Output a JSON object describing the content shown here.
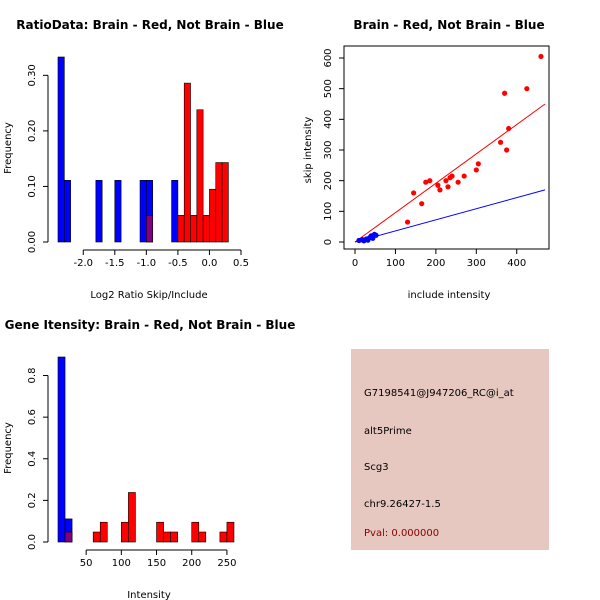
{
  "chart_data": [
    {
      "type": "bar",
      "title": "RatioData: Brain - Red, Not Brain - Blue",
      "xlabel": "Log2 Ratio Skip/Include",
      "ylabel": "Frequency",
      "xlim": [
        -2.4,
        0.5
      ],
      "ylim": [
        0,
        0.333
      ],
      "xticks": [
        -2.0,
        -1.5,
        -1.0,
        -0.5,
        0.0,
        0.5
      ],
      "xtick_labels": [
        "-2.0",
        "-1.5",
        "-1.0",
        "-0.5",
        "0.0",
        "0.5"
      ],
      "yticks": [
        0.0,
        0.1,
        0.2,
        0.3
      ],
      "ytick_labels": [
        "0.00",
        "0.10",
        "0.20",
        "0.30"
      ],
      "bin_width": 0.1,
      "series": [
        {
          "name": "Not Brain",
          "color": "#0000ff",
          "bin_starts": [
            -2.4,
            -2.3,
            -1.8,
            -1.5,
            -1.1,
            -1.0,
            -0.6
          ],
          "values": [
            0.333,
            0.111,
            0.111,
            0.111,
            0.111,
            0.111,
            0.111
          ]
        },
        {
          "name": "Brain",
          "color": "#ff0000",
          "bin_starts": [
            -1.0,
            -0.5,
            -0.4,
            -0.3,
            -0.2,
            -0.1,
            0.0,
            0.1,
            0.2
          ],
          "values": [
            0.048,
            0.048,
            0.286,
            0.048,
            0.238,
            0.048,
            0.095,
            0.143,
            0.143
          ]
        }
      ],
      "overlap_color": "#800080"
    },
    {
      "type": "scatter",
      "title": "Brain - Red, Not Brain - Blue",
      "xlabel": "include intensity",
      "ylabel": "skip intensity",
      "xlim": [
        0,
        470
      ],
      "ylim": [
        0,
        620
      ],
      "xticks": [
        0,
        100,
        200,
        300,
        400
      ],
      "yticks": [
        0,
        100,
        200,
        300,
        400,
        500,
        600
      ],
      "series": [
        {
          "name": "Brain",
          "color": "#ff0000",
          "x": [
            10,
            20,
            130,
            145,
            165,
            175,
            185,
            205,
            210,
            225,
            230,
            235,
            240,
            255,
            270,
            300,
            305,
            360,
            370,
            375,
            380,
            425,
            460
          ],
          "y": [
            5,
            5,
            65,
            160,
            125,
            195,
            200,
            185,
            170,
            200,
            180,
            210,
            215,
            195,
            215,
            235,
            255,
            325,
            485,
            300,
            370,
            500,
            605
          ]
        },
        {
          "name": "Not Brain",
          "color": "#0000ff",
          "x": [
            10,
            18,
            22,
            28,
            32,
            36,
            40,
            44,
            48,
            52
          ],
          "y": [
            5,
            8,
            4,
            10,
            6,
            14,
            20,
            12,
            25,
            22
          ]
        }
      ],
      "fit_lines": [
        {
          "name": "Brain fit",
          "color": "#ff0000",
          "x": [
            0,
            470
          ],
          "y": [
            0,
            450
          ]
        },
        {
          "name": "Not Brain fit",
          "color": "#0000ff",
          "x": [
            0,
            470
          ],
          "y": [
            0,
            170
          ]
        }
      ]
    },
    {
      "type": "bar",
      "title": "Gene Itensity: Brain - Red, Not Brain - Blue",
      "xlabel": "Intensity",
      "ylabel": "Frequency",
      "xlim": [
        10,
        270
      ],
      "ylim": [
        0,
        0.889
      ],
      "xticks": [
        50,
        100,
        150,
        200,
        250
      ],
      "yticks": [
        0.0,
        0.2,
        0.4,
        0.6,
        0.8
      ],
      "ytick_labels": [
        "0.0",
        "0.2",
        "0.4",
        "0.6",
        "0.8"
      ],
      "bin_width": 10,
      "series": [
        {
          "name": "Not Brain",
          "color": "#0000ff",
          "bin_starts": [
            10,
            20
          ],
          "values": [
            0.889,
            0.111
          ]
        },
        {
          "name": "Brain",
          "color": "#ff0000",
          "bin_starts": [
            20,
            60,
            70,
            100,
            110,
            150,
            160,
            170,
            200,
            210,
            240,
            250
          ],
          "values": [
            0.048,
            0.048,
            0.095,
            0.095,
            0.238,
            0.095,
            0.048,
            0.048,
            0.095,
            0.048,
            0.048,
            0.095
          ]
        }
      ],
      "overlap_color": "#800080"
    }
  ],
  "info_panel": {
    "probe_id": "G7198541@J947206_RC@i_at",
    "event_type": "alt5Prime",
    "gene": "Scg3",
    "location": "chr9.26427-1.5",
    "pval": "Pval: 0.000000",
    "background_color": "#e6c8c0",
    "pval_color": "#8b0000"
  }
}
